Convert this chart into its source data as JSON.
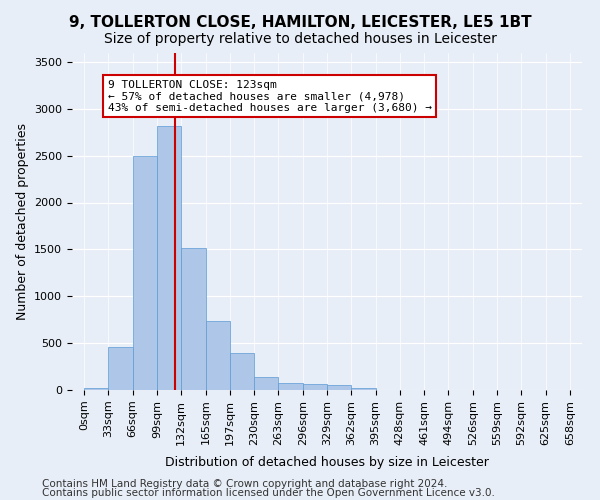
{
  "title": "9, TOLLERTON CLOSE, HAMILTON, LEICESTER, LE5 1BT",
  "subtitle": "Size of property relative to detached houses in Leicester",
  "xlabel": "Distribution of detached houses by size in Leicester",
  "ylabel": "Number of detached properties",
  "bar_values": [
    20,
    460,
    2500,
    2820,
    1520,
    740,
    390,
    140,
    75,
    60,
    55,
    20,
    0,
    0,
    0,
    0,
    0,
    0,
    0,
    0
  ],
  "bin_labels": [
    "0sqm",
    "33sqm",
    "66sqm",
    "99sqm",
    "132sqm",
    "165sqm",
    "197sqm",
    "230sqm",
    "263sqm",
    "296sqm",
    "329sqm",
    "362sqm",
    "395sqm",
    "428sqm",
    "461sqm",
    "494sqm",
    "526sqm",
    "559sqm",
    "592sqm",
    "625sqm",
    "658sqm"
  ],
  "bar_color": "#aec6e8",
  "bar_edge_color": "#5b9bd5",
  "vline_x": 3.73,
  "vline_color": "#cc0000",
  "annotation_text": "9 TOLLERTON CLOSE: 123sqm\n← 57% of detached houses are smaller (4,978)\n43% of semi-detached houses are larger (3,680) →",
  "annotation_box_color": "#ffffff",
  "annotation_box_edge": "#cc0000",
  "ylim": [
    0,
    3600
  ],
  "yticks": [
    0,
    500,
    1000,
    1500,
    2000,
    2500,
    3000,
    3500
  ],
  "footer1": "Contains HM Land Registry data © Crown copyright and database right 2024.",
  "footer2": "Contains public sector information licensed under the Open Government Licence v3.0.",
  "background_color": "#e8eef7",
  "plot_bg_color": "#e8eef7",
  "title_fontsize": 11,
  "subtitle_fontsize": 10,
  "axis_fontsize": 9,
  "tick_fontsize": 8,
  "footer_fontsize": 7.5
}
